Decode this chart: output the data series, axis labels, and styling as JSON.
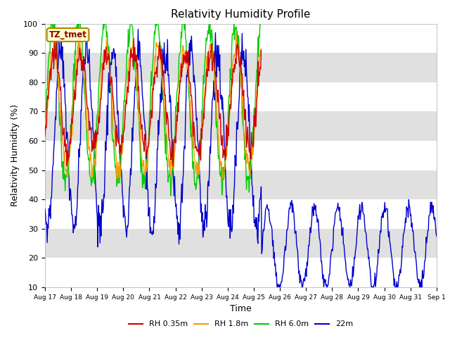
{
  "title": "Relativity Humidity Profile",
  "xlabel": "Time",
  "ylabel": "Relativity Humidity (%)",
  "ylim": [
    10,
    100
  ],
  "yticks": [
    10,
    20,
    30,
    40,
    50,
    60,
    70,
    80,
    90,
    100
  ],
  "colors": {
    "red": "#cc0000",
    "orange": "#ff9900",
    "green": "#00cc00",
    "blue": "#0000cc"
  },
  "legend_labels": [
    "RH 0.35m",
    "RH 1.8m",
    "RH 6.0m",
    "22m"
  ],
  "tz_label": "TZ_tmet",
  "bg_color": "#ffffff",
  "band_color": "#e0e0e0",
  "band_ranges": [
    [
      20,
      30
    ],
    [
      40,
      50
    ],
    [
      60,
      70
    ],
    [
      80,
      90
    ]
  ],
  "n_days": 15,
  "start_day": 17
}
